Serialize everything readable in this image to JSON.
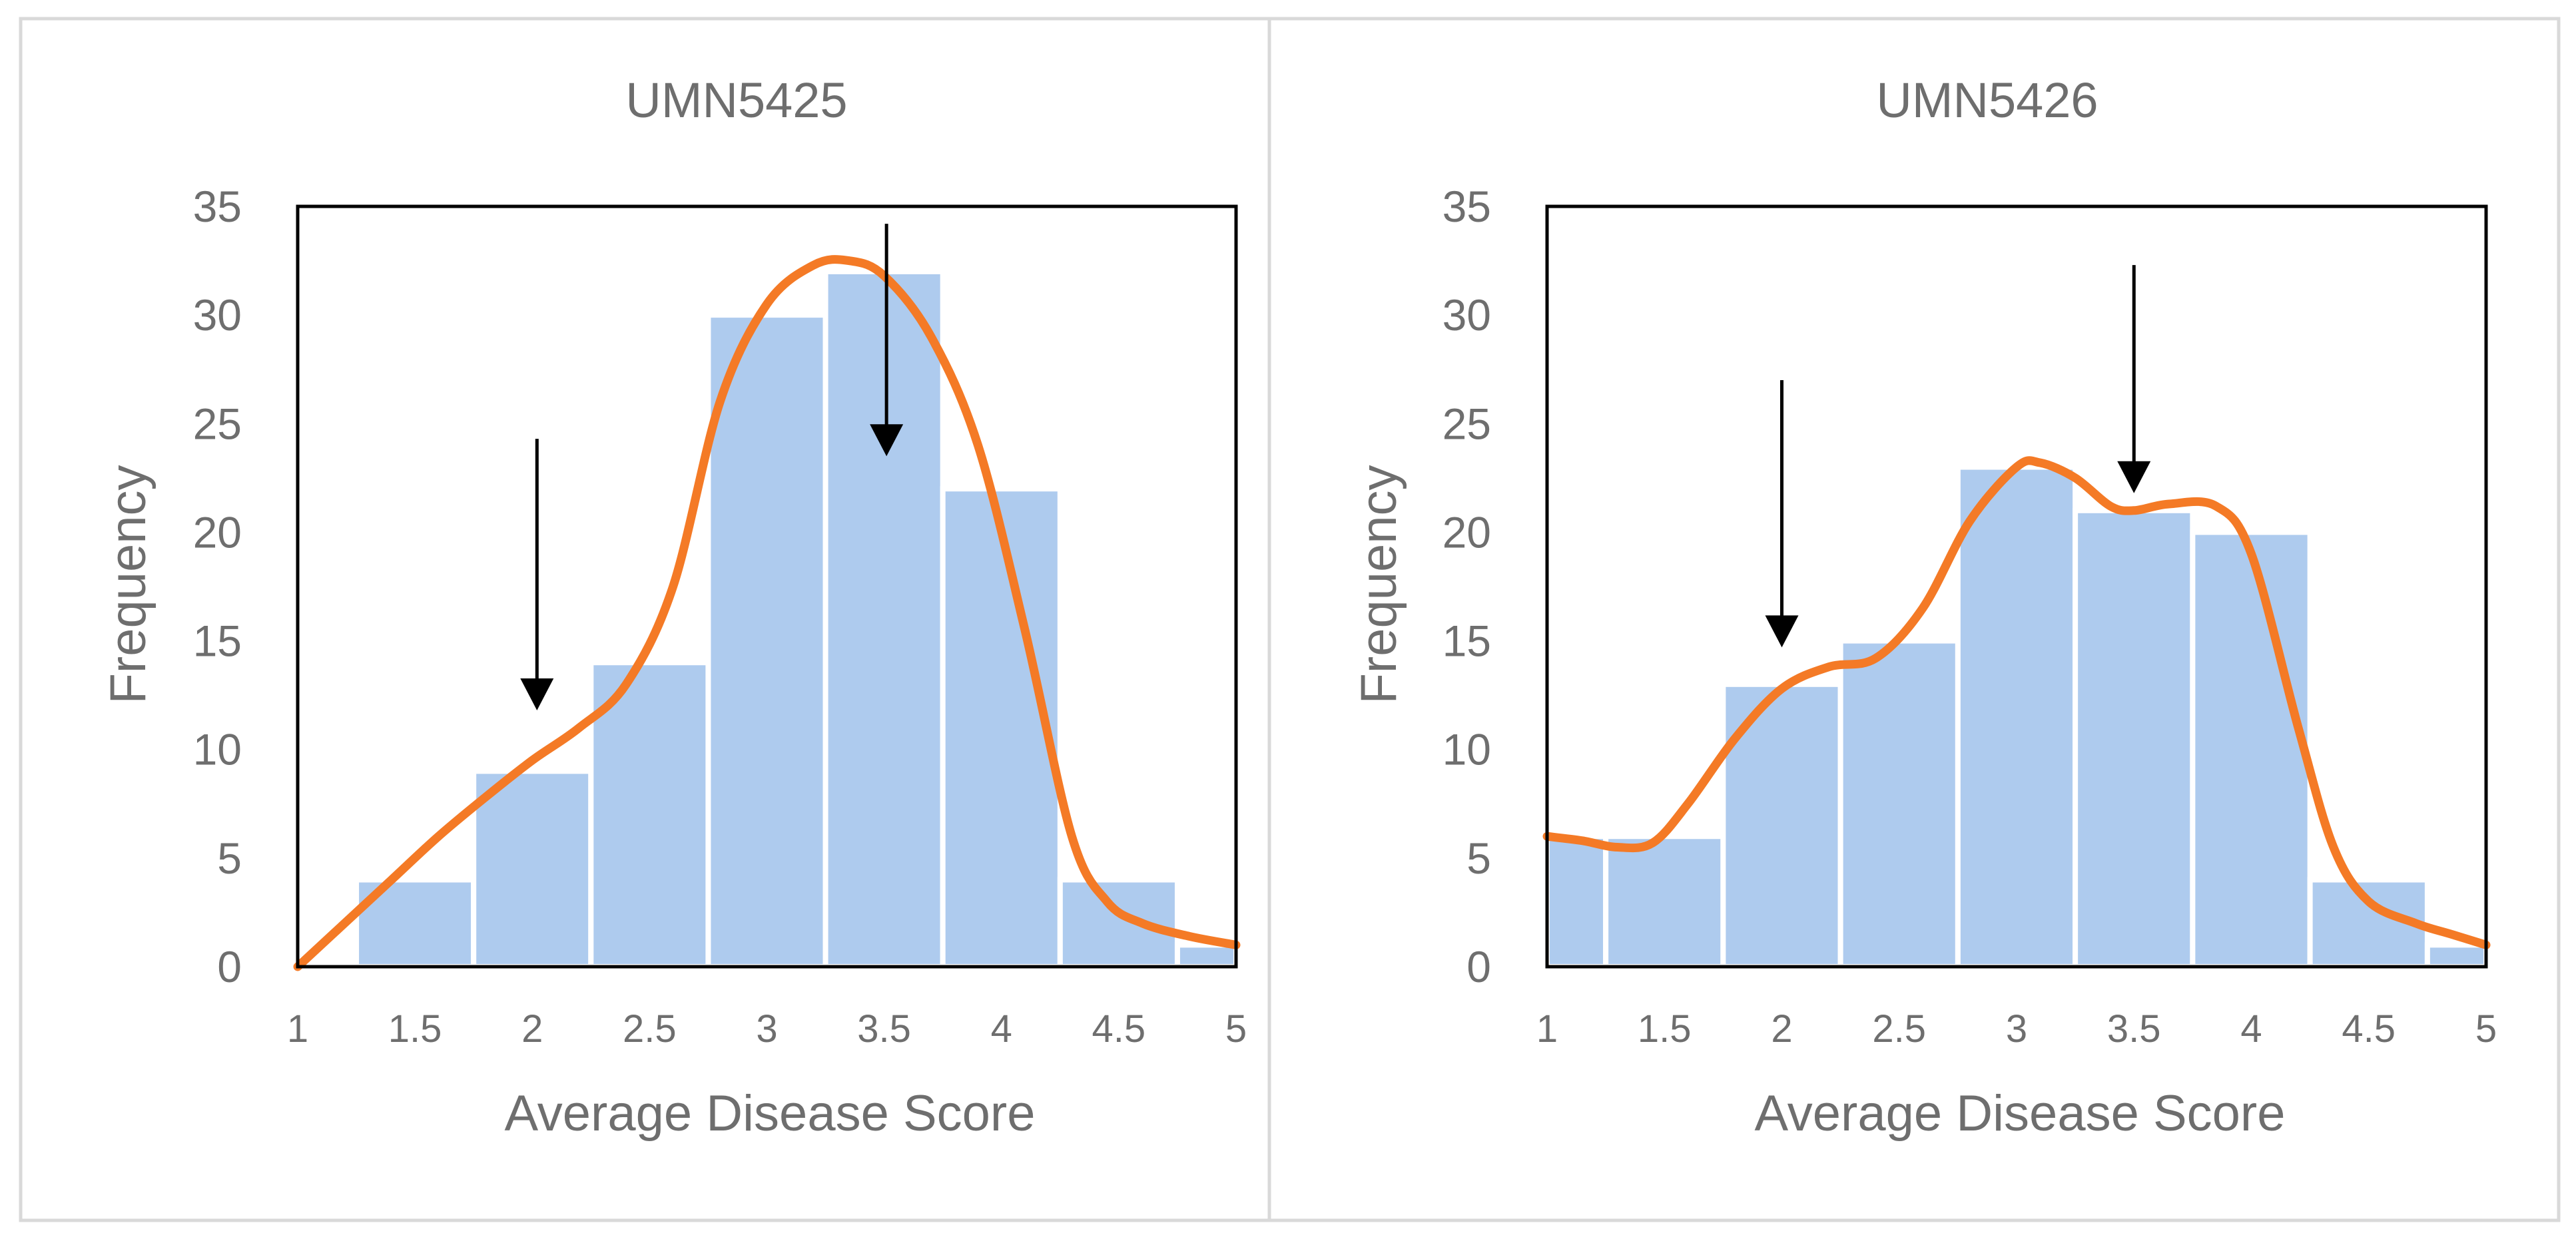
{
  "figure": {
    "colors": {
      "bar": "#aecbee",
      "curve": "#f47a26",
      "frame": "#000000",
      "text": "#6e6e6e",
      "panel_border": "#d9d9d9"
    }
  },
  "chart_data": [
    {
      "type": "bar",
      "title": "UMN5425",
      "xlabel": "Average Disease Score",
      "ylabel": "Frequency",
      "xlim": [
        1,
        5
      ],
      "ylim": [
        0,
        35
      ],
      "xticks": [
        "1",
        "1.5",
        "2",
        "2.5",
        "3",
        "3.5",
        "4",
        "4.5",
        "5"
      ],
      "yticks": [
        "0",
        "5",
        "10",
        "15",
        "20",
        "25",
        "30",
        "35"
      ],
      "series": [
        {
          "name": "Frequency",
          "bins": [
            {
              "start": 1.0,
              "end": 1.25,
              "value": 0
            },
            {
              "start": 1.25,
              "end": 1.75,
              "value": 4
            },
            {
              "start": 1.75,
              "end": 2.25,
              "value": 9
            },
            {
              "start": 2.25,
              "end": 2.75,
              "value": 14
            },
            {
              "start": 2.75,
              "end": 3.25,
              "value": 30
            },
            {
              "start": 3.25,
              "end": 3.75,
              "value": 32
            },
            {
              "start": 3.75,
              "end": 4.25,
              "value": 22
            },
            {
              "start": 4.25,
              "end": 4.75,
              "value": 4
            },
            {
              "start": 4.75,
              "end": 5.0,
              "value": 1
            }
          ]
        },
        {
          "name": "Density curve",
          "type": "line",
          "x": [
            1.0,
            1.2,
            1.4,
            1.6,
            1.8,
            2.0,
            2.2,
            2.4,
            2.6,
            2.8,
            3.0,
            3.2,
            3.35,
            3.5,
            3.7,
            3.9,
            4.1,
            4.3,
            4.45,
            4.6,
            4.8,
            5.0
          ],
          "y": [
            0,
            2,
            4,
            6,
            7.8,
            9.5,
            11,
            13,
            17.5,
            26,
            30.5,
            32.3,
            32.5,
            31.8,
            29,
            24,
            15.5,
            6,
            3,
            2,
            1.4,
            1
          ]
        }
      ],
      "annotations": [
        {
          "type": "arrow",
          "x": 2.02,
          "y_from": 24.3,
          "y_to": 11.8
        },
        {
          "type": "arrow",
          "x": 3.51,
          "y_from": 34.2,
          "y_to": 23.5
        }
      ]
    },
    {
      "type": "bar",
      "title": "UMN5426",
      "xlabel": "Average Disease Score",
      "ylabel": "Frequency",
      "xlim": [
        1,
        5
      ],
      "ylim": [
        0,
        35
      ],
      "xticks": [
        "1",
        "1.5",
        "2",
        "2.5",
        "3",
        "3.5",
        "4",
        "4.5",
        "5"
      ],
      "yticks": [
        "0",
        "5",
        "10",
        "15",
        "20",
        "25",
        "30",
        "35"
      ],
      "series": [
        {
          "name": "Frequency",
          "bins": [
            {
              "start": 1.0,
              "end": 1.25,
              "value": 6
            },
            {
              "start": 1.25,
              "end": 1.75,
              "value": 6
            },
            {
              "start": 1.75,
              "end": 2.25,
              "value": 13
            },
            {
              "start": 2.25,
              "end": 2.75,
              "value": 15
            },
            {
              "start": 2.75,
              "end": 3.25,
              "value": 23
            },
            {
              "start": 3.25,
              "end": 3.75,
              "value": 21
            },
            {
              "start": 3.75,
              "end": 4.25,
              "value": 20
            },
            {
              "start": 4.25,
              "end": 4.75,
              "value": 4
            },
            {
              "start": 4.75,
              "end": 5.0,
              "value": 1
            }
          ]
        },
        {
          "name": "Density curve",
          "type": "line",
          "x": [
            1.0,
            1.15,
            1.3,
            1.45,
            1.6,
            1.8,
            2.0,
            2.2,
            2.4,
            2.6,
            2.8,
            3.0,
            3.1,
            3.25,
            3.4,
            3.5,
            3.65,
            3.85,
            4.0,
            4.2,
            4.35,
            4.5,
            4.7,
            4.85,
            5.0
          ],
          "y": [
            6,
            5.8,
            5.5,
            5.7,
            7.5,
            10.5,
            12.8,
            13.8,
            14.2,
            16.5,
            20.5,
            23,
            23.2,
            22.5,
            21.2,
            21,
            21.3,
            21.2,
            19,
            11,
            5.5,
            3,
            2,
            1.5,
            1
          ]
        }
      ],
      "annotations": [
        {
          "type": "arrow",
          "x": 2.0,
          "y_from": 27,
          "y_to": 14.7
        },
        {
          "type": "arrow",
          "x": 3.5,
          "y_from": 32.3,
          "y_to": 21.8
        }
      ]
    }
  ]
}
